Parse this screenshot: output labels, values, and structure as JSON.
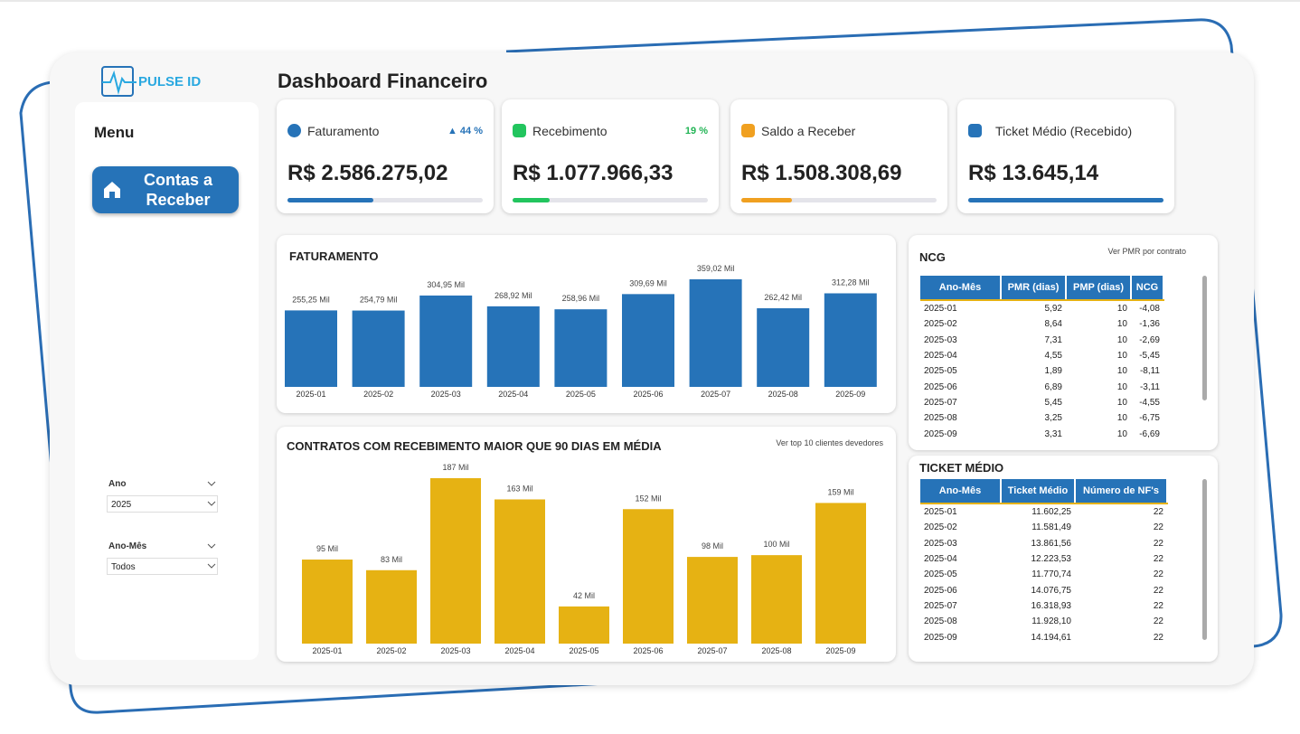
{
  "header": {
    "logo": "PULSE ID",
    "title": "Dashboard Financeiro"
  },
  "menu": {
    "title": "Menu",
    "button": "Contas a Receber"
  },
  "filters": [
    {
      "label": "Ano",
      "value": "2025"
    },
    {
      "label": "Ano-Mês",
      "value": "Todos"
    }
  ],
  "kpis": [
    {
      "label": "Faturamento",
      "value": "R$ 2.586.275,02",
      "change": "44 %"
    },
    {
      "label": "Recebimento",
      "value": "R$ 1.077.966,33",
      "change": "19 %"
    },
    {
      "label": "Saldo a Receber",
      "value": "R$ 1.508.308,69"
    },
    {
      "label": "Ticket Médio (Recebido)",
      "value": "R$ 13.645,14"
    }
  ],
  "chart_data": [
    {
      "type": "bar",
      "title": "FATURAMENTO",
      "color": "#2673b8",
      "categories": [
        "2025-01",
        "2025-02",
        "2025-03",
        "2025-04",
        "2025-05",
        "2025-06",
        "2025-07",
        "2025-08",
        "2025-09"
      ],
      "values": [
        255.25,
        254.79,
        304.95,
        268.92,
        258.96,
        309.69,
        359.02,
        262.42,
        312.28
      ],
      "value_labels": [
        "255,25 Mil",
        "254,79 Mil",
        "304,95 Mil",
        "268,92 Mil",
        "258,96 Mil",
        "309,69 Mil",
        "359,02 Mil",
        "262,42 Mil",
        "312,28 Mil"
      ]
    },
    {
      "type": "bar",
      "title": "CONTRATOS COM RECEBIMENTO MAIOR QUE 90 DIAS EM MÉDIA",
      "annotation": "Ver top 10 clientes devedores",
      "color": "#e6b213",
      "categories": [
        "2025-01",
        "2025-02",
        "2025-03",
        "2025-04",
        "2025-05",
        "2025-06",
        "2025-07",
        "2025-08",
        "2025-09"
      ],
      "values": [
        95,
        83,
        187,
        163,
        42,
        152,
        98,
        100,
        159
      ],
      "value_labels": [
        "95 Mil",
        "83 Mil",
        "187 Mil",
        "163 Mil",
        "42 Mil",
        "152 Mil",
        "98 Mil",
        "100 Mil",
        "159 Mil"
      ]
    }
  ],
  "ncg": {
    "title": "NCG",
    "annotation": "Ver PMR por contrato",
    "columns": [
      "Ano-Mês",
      "PMR (dias)",
      "PMP (dias)",
      "NCG"
    ],
    "rows": [
      [
        "2025-01",
        "5,92",
        "10",
        "-4,08"
      ],
      [
        "2025-02",
        "8,64",
        "10",
        "-1,36"
      ],
      [
        "2025-03",
        "7,31",
        "10",
        "-2,69"
      ],
      [
        "2025-04",
        "4,55",
        "10",
        "-5,45"
      ],
      [
        "2025-05",
        "1,89",
        "10",
        "-8,11"
      ],
      [
        "2025-06",
        "6,89",
        "10",
        "-3,11"
      ],
      [
        "2025-07",
        "5,45",
        "10",
        "-4,55"
      ],
      [
        "2025-08",
        "3,25",
        "10",
        "-6,75"
      ],
      [
        "2025-09",
        "3,31",
        "10",
        "-6,69"
      ]
    ]
  },
  "ticket": {
    "title": "TICKET MÉDIO",
    "columns": [
      "Ano-Mês",
      "Ticket Médio",
      "Número de NF's"
    ],
    "rows": [
      [
        "2025-01",
        "11.602,25",
        "22"
      ],
      [
        "2025-02",
        "11.581,49",
        "22"
      ],
      [
        "2025-03",
        "13.861,56",
        "22"
      ],
      [
        "2025-04",
        "12.223,53",
        "22"
      ],
      [
        "2025-05",
        "11.770,74",
        "22"
      ],
      [
        "2025-06",
        "14.076,75",
        "22"
      ],
      [
        "2025-07",
        "16.318,93",
        "22"
      ],
      [
        "2025-08",
        "11.928,10",
        "22"
      ],
      [
        "2025-09",
        "14.194,61",
        "22"
      ]
    ]
  }
}
